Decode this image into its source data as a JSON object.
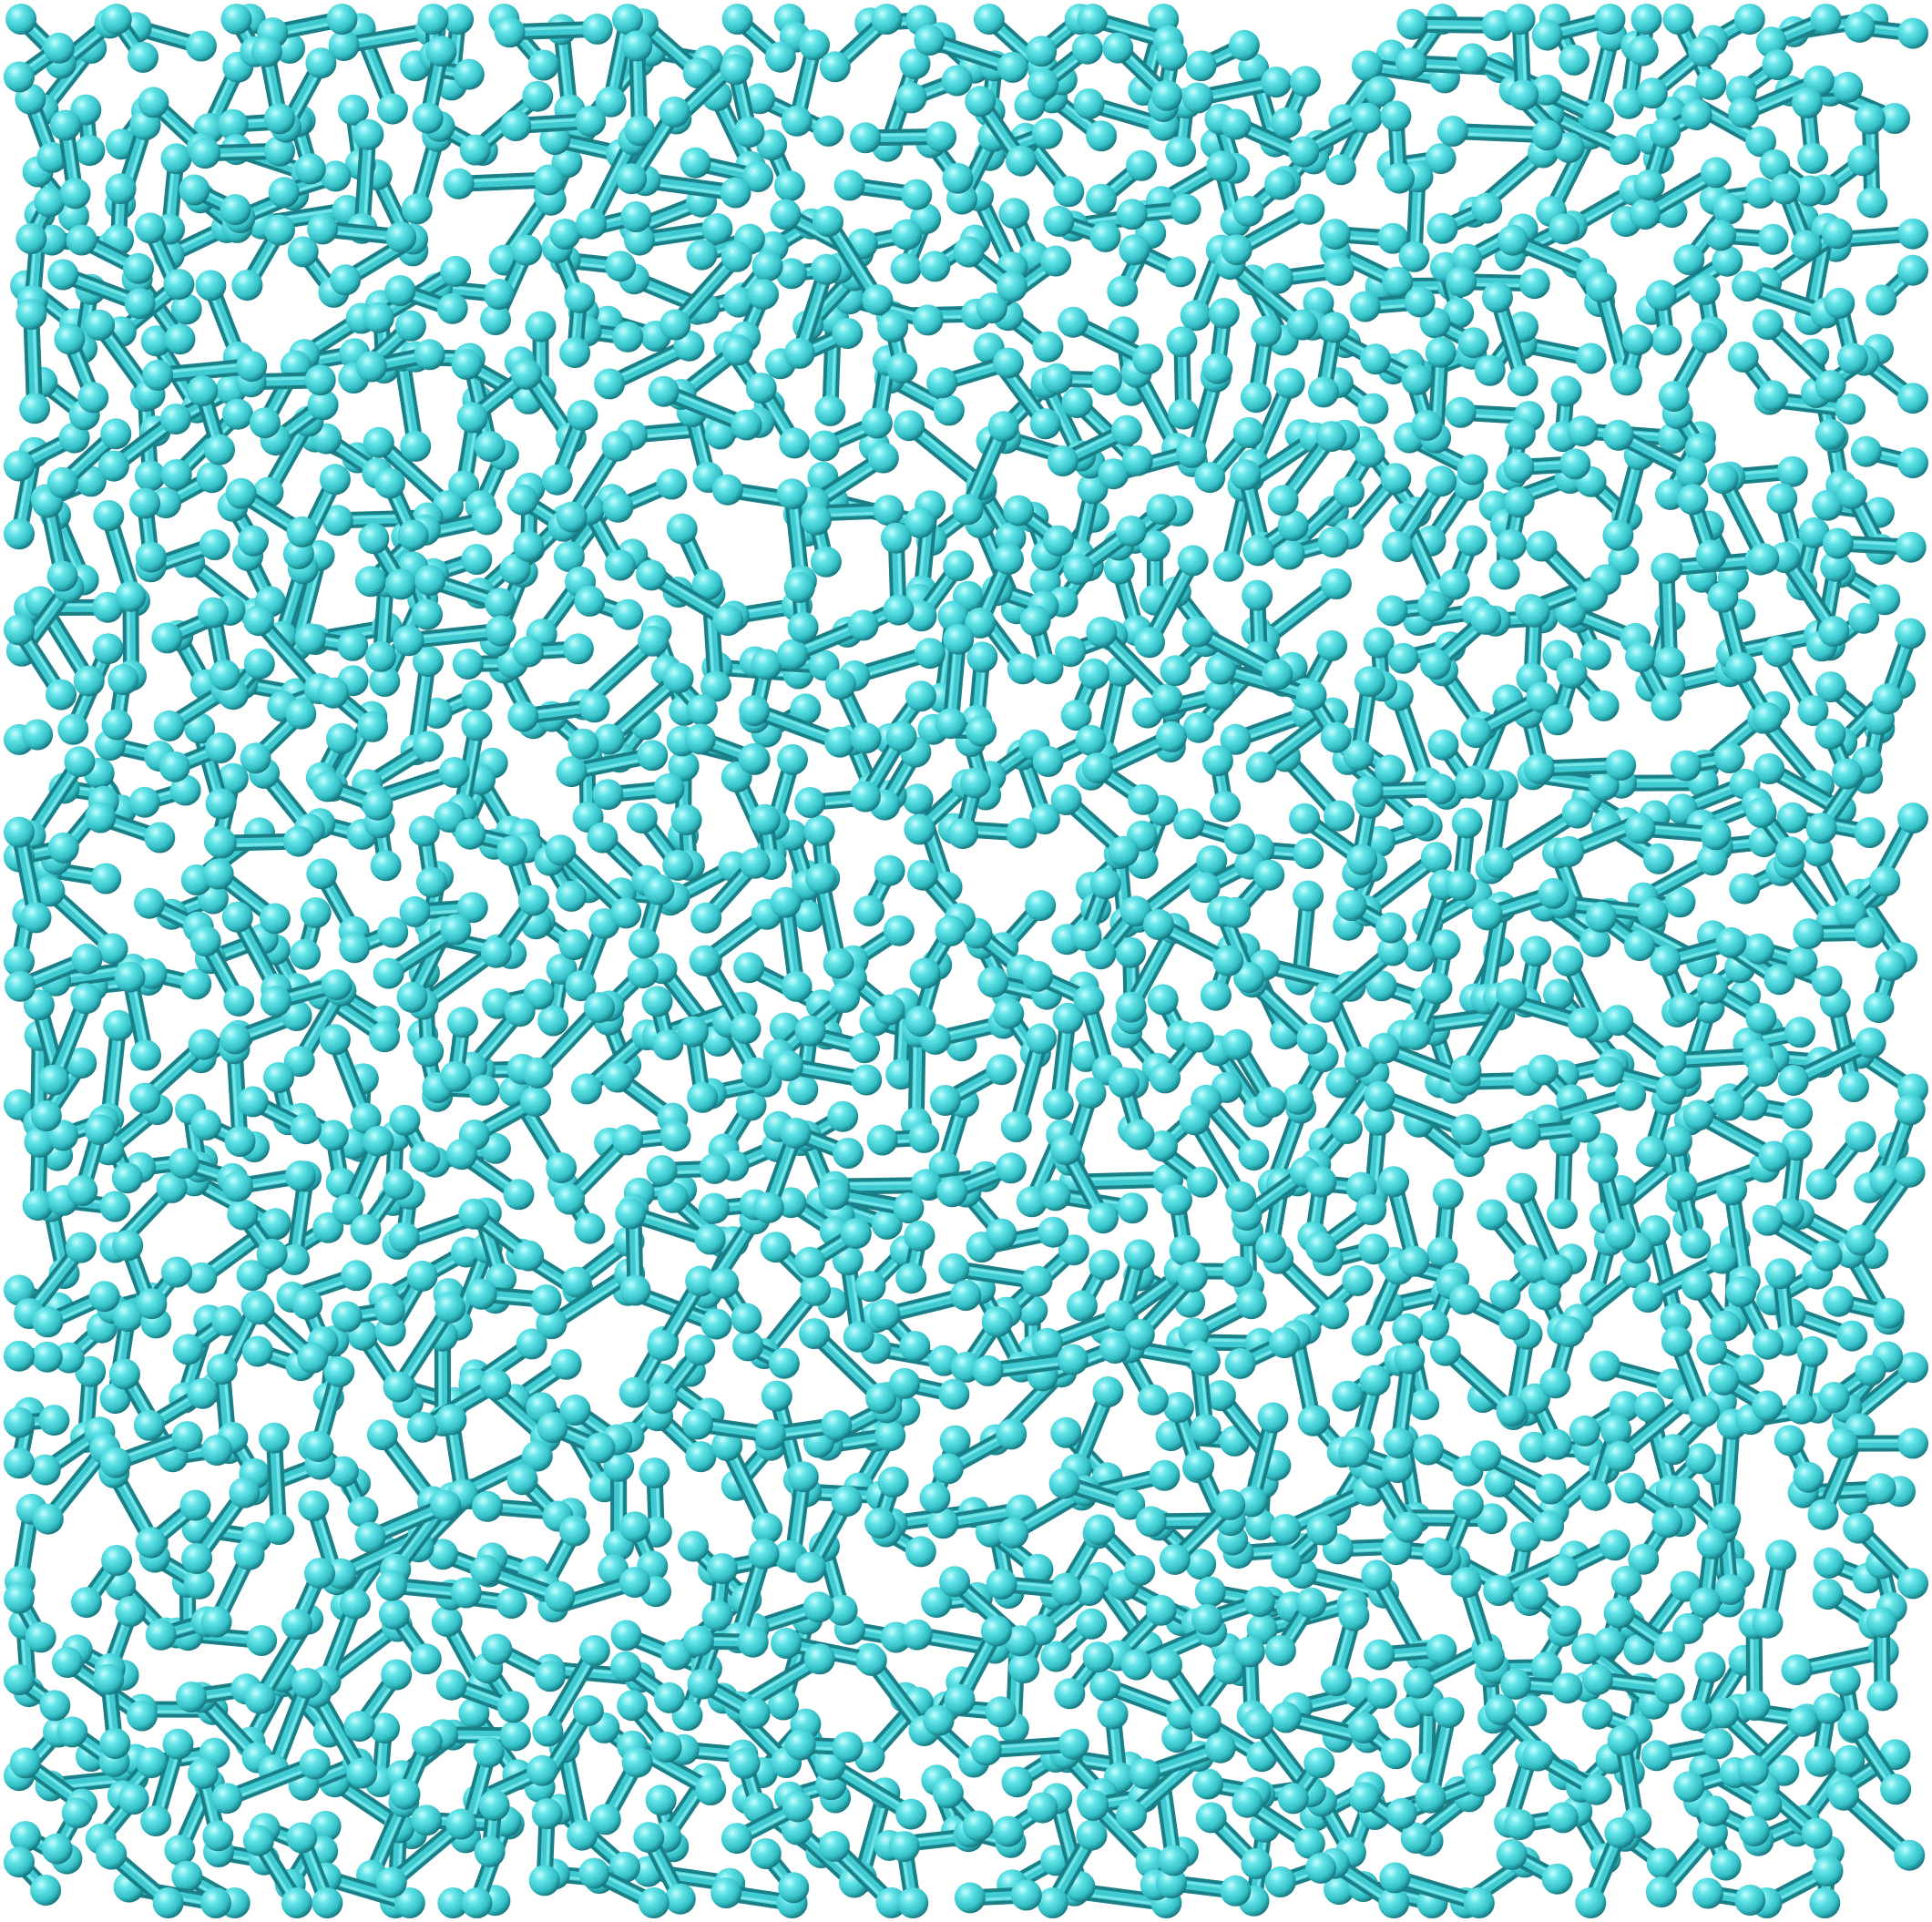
{
  "scene": {
    "subject": "molecules",
    "molecule_type": "diatomic",
    "style": "ball-and-stick",
    "render_style": "3D shaded spheres and cylinders",
    "colors": {
      "background": "#ffffff",
      "atom_base": "#40d8dc",
      "atom_highlight": "#b8fbfc",
      "atom_shadow": "#157e86",
      "bond_base": "#3fc8cf",
      "bond_shadow": "#1b8088"
    }
  }
}
